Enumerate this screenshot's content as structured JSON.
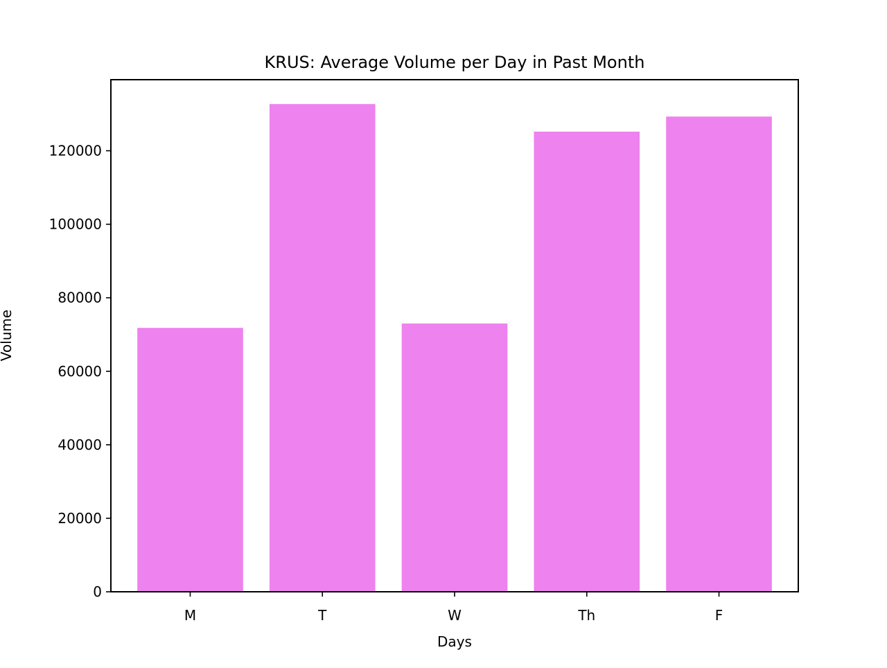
{
  "chart_data": {
    "type": "bar",
    "title": "KRUS: Average Volume per Day in Past Month",
    "xlabel": "Days",
    "ylabel": "Volume",
    "categories": [
      "M",
      "T",
      "W",
      "Th",
      "F"
    ],
    "values": [
      71800,
      132700,
      73000,
      125200,
      129300
    ],
    "ylim": [
      0,
      139335
    ],
    "yticks": [
      0,
      20000,
      40000,
      60000,
      80000,
      100000,
      120000
    ],
    "ytick_labels": [
      "0",
      "20000",
      "40000",
      "60000",
      "80000",
      "100000",
      "120000"
    ],
    "bar_color": "#ee82ee",
    "grid": false,
    "legend": "none"
  }
}
